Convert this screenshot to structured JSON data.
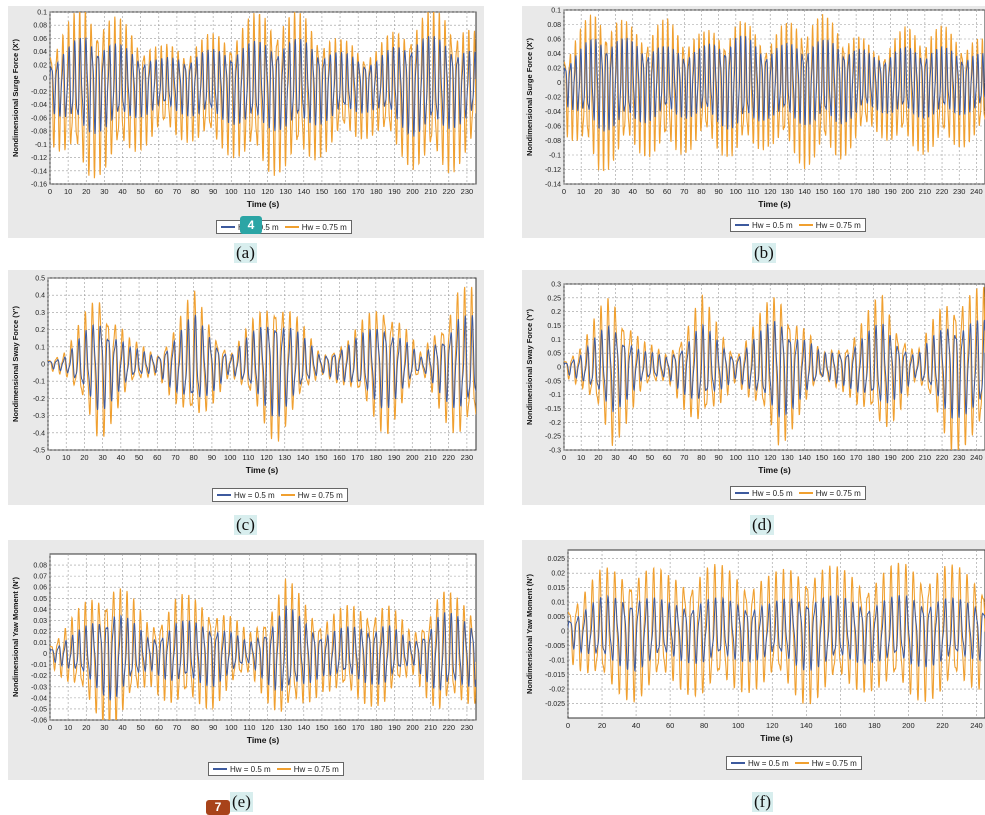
{
  "colors": {
    "series1": "#3d5a9e",
    "series2": "#f0a030",
    "panel_bg": "#e9e9e9",
    "grid": "#9a9a9a"
  },
  "badges": [
    {
      "text": "4",
      "color": "#2ba5a5"
    },
    {
      "text": "7",
      "color": "#a8431a"
    }
  ],
  "chart_data": [
    {
      "id": "a",
      "caption": "(a)",
      "type": "line",
      "ylabel": "Nondimensional Surge Force (X')",
      "xlabel": "Time (s)",
      "xlim": [
        0,
        235
      ],
      "xticks": [
        0,
        10,
        20,
        30,
        40,
        50,
        60,
        70,
        80,
        90,
        100,
        110,
        120,
        130,
        140,
        150,
        160,
        170,
        180,
        190,
        200,
        210,
        220,
        230
      ],
      "ylim": [
        -0.16,
        0.1
      ],
      "yticks": [
        0.1,
        0.08,
        0.06,
        0.04,
        0.02,
        0,
        -0.02,
        -0.04,
        -0.06,
        -0.08,
        -0.1,
        -0.12,
        -0.14,
        -0.16
      ],
      "series": [
        {
          "name": "Hw = 0.5 m",
          "color": "#3d5a9e",
          "amp_x": [
            0,
            20,
            40,
            60,
            80,
            100,
            120,
            140,
            160,
            180,
            200,
            220,
            235
          ],
          "amp_y": [
            0.04,
            0.08,
            0.06,
            0.04,
            0.05,
            0.06,
            0.07,
            0.07,
            0.05,
            0.04,
            0.08,
            0.07,
            0.05
          ],
          "period": 3.2,
          "offset": -0.01
        },
        {
          "name": "Hw = 0.75 m",
          "color": "#f0a030",
          "amp_x": [
            0,
            20,
            40,
            60,
            80,
            100,
            120,
            140,
            160,
            180,
            200,
            220,
            235
          ],
          "amp_y": [
            0.08,
            0.14,
            0.11,
            0.07,
            0.08,
            0.1,
            0.13,
            0.12,
            0.08,
            0.07,
            0.12,
            0.13,
            0.09
          ],
          "period": 3.2,
          "offset": -0.02
        }
      ],
      "legend": [
        "Hw = 0.5 m",
        "Hw = 0.75 m"
      ]
    },
    {
      "id": "b",
      "caption": "(b)",
      "type": "line",
      "ylabel": "Nondimensional Surge Force (X')",
      "xlabel": "Time (s)",
      "xlim": [
        0,
        245
      ],
      "xticks": [
        0,
        10,
        20,
        30,
        40,
        50,
        60,
        70,
        80,
        90,
        100,
        110,
        120,
        130,
        140,
        150,
        160,
        170,
        180,
        190,
        200,
        210,
        220,
        230,
        240
      ],
      "ylim": [
        -0.14,
        0.1
      ],
      "yticks": [
        0.1,
        0.08,
        0.06,
        0.04,
        0.02,
        0,
        -0.02,
        -0.04,
        -0.06,
        -0.08,
        -0.1,
        -0.12,
        -0.14
      ],
      "series": [
        {
          "name": "Hw = 0.5 m",
          "color": "#3d5a9e",
          "amp_x": [
            0,
            20,
            40,
            60,
            80,
            100,
            120,
            140,
            160,
            180,
            200,
            220,
            245
          ],
          "amp_y": [
            0.03,
            0.07,
            0.06,
            0.05,
            0.05,
            0.07,
            0.05,
            0.06,
            0.06,
            0.04,
            0.05,
            0.05,
            0.04
          ],
          "period": 3.0,
          "offset": 0
        },
        {
          "name": "Hw = 0.75 m",
          "color": "#f0a030",
          "amp_x": [
            0,
            20,
            40,
            60,
            80,
            100,
            120,
            140,
            160,
            180,
            200,
            220,
            245
          ],
          "amp_y": [
            0.06,
            0.12,
            0.09,
            0.1,
            0.08,
            0.1,
            0.08,
            0.11,
            0.1,
            0.06,
            0.09,
            0.09,
            0.07
          ],
          "period": 3.0,
          "offset": -0.01
        }
      ],
      "legend": [
        "Hw = 0.5 m",
        "Hw = 0.75 m"
      ]
    },
    {
      "id": "c",
      "caption": "(c)",
      "type": "line",
      "ylabel": "Nondimensional Sway Force (Y')",
      "xlabel": "Time (s)",
      "xlim": [
        0,
        235
      ],
      "xticks": [
        0,
        10,
        20,
        30,
        40,
        50,
        60,
        70,
        80,
        90,
        100,
        110,
        120,
        130,
        140,
        150,
        160,
        170,
        180,
        190,
        200,
        210,
        220,
        230
      ],
      "ylim": [
        -0.5,
        0.5
      ],
      "yticks": [
        0.5,
        0.4,
        0.3,
        0.2,
        0.1,
        0,
        -0.1,
        -0.2,
        -0.3,
        -0.4,
        -0.5
      ],
      "series": [
        {
          "name": "Hw = 0.5 m",
          "color": "#3d5a9e",
          "amp_x": [
            0,
            10,
            28,
            45,
            60,
            80,
            100,
            125,
            150,
            165,
            185,
            205,
            225,
            235
          ],
          "amp_y": [
            0.02,
            0.05,
            0.3,
            0.1,
            0.05,
            0.3,
            0.05,
            0.33,
            0.05,
            0.12,
            0.28,
            0.04,
            0.3,
            0.28
          ],
          "period": 4.0,
          "offset": 0
        },
        {
          "name": "Hw = 0.75 m",
          "color": "#f0a030",
          "amp_x": [
            0,
            10,
            28,
            45,
            60,
            80,
            100,
            125,
            150,
            165,
            185,
            205,
            225,
            235
          ],
          "amp_y": [
            0.03,
            0.08,
            0.48,
            0.15,
            0.06,
            0.44,
            0.06,
            0.48,
            0.06,
            0.15,
            0.44,
            0.06,
            0.48,
            0.44
          ],
          "period": 4.0,
          "offset": 0
        }
      ],
      "legend": [
        "Hw = 0.5 m",
        "Hw = 0.75 m"
      ]
    },
    {
      "id": "d",
      "caption": "(d)",
      "type": "line",
      "ylabel": "Nondimensional Sway Force (Y')",
      "xlabel": "Time (s)",
      "xlim": [
        0,
        245
      ],
      "xticks": [
        0,
        10,
        20,
        30,
        40,
        50,
        60,
        70,
        80,
        90,
        100,
        110,
        120,
        130,
        140,
        150,
        160,
        170,
        180,
        190,
        200,
        210,
        220,
        230,
        240
      ],
      "ylim": [
        -0.3,
        0.3
      ],
      "yticks": [
        0.3,
        0.25,
        0.2,
        0.15,
        0.1,
        0.05,
        0,
        -0.05,
        -0.1,
        -0.15,
        -0.2,
        -0.25,
        -0.3
      ],
      "series": [
        {
          "name": "Hw = 0.5 m",
          "color": "#3d5a9e",
          "amp_x": [
            0,
            10,
            28,
            45,
            60,
            80,
            100,
            125,
            150,
            165,
            185,
            205,
            225,
            245
          ],
          "amp_y": [
            0.02,
            0.05,
            0.18,
            0.06,
            0.04,
            0.16,
            0.04,
            0.2,
            0.05,
            0.07,
            0.17,
            0.04,
            0.19,
            0.17
          ],
          "period": 4.2,
          "offset": 0
        },
        {
          "name": "Hw = 0.75 m",
          "color": "#f0a030",
          "amp_x": [
            0,
            10,
            28,
            45,
            60,
            80,
            100,
            125,
            150,
            165,
            185,
            205,
            225,
            245
          ],
          "amp_y": [
            0.03,
            0.08,
            0.31,
            0.1,
            0.05,
            0.27,
            0.05,
            0.31,
            0.05,
            0.1,
            0.28,
            0.05,
            0.31,
            0.29
          ],
          "period": 4.2,
          "offset": 0
        }
      ],
      "legend": [
        "Hw = 0.5 m",
        "Hw = 0.75 m"
      ]
    },
    {
      "id": "e",
      "caption": "(e)",
      "type": "line",
      "ylabel": "Nondimensional Yaw Moment (N')",
      "xlabel": "Time (s)",
      "xlim": [
        0,
        235
      ],
      "xticks": [
        0,
        10,
        20,
        30,
        40,
        50,
        60,
        70,
        80,
        90,
        100,
        110,
        120,
        130,
        140,
        150,
        160,
        170,
        180,
        190,
        200,
        210,
        220,
        230
      ],
      "ylim": [
        -0.06,
        0.09
      ],
      "yticks": [
        0.08,
        0.07,
        0.06,
        0.05,
        0.04,
        0.03,
        0.02,
        0.01,
        0,
        -0.01,
        -0.02,
        -0.03,
        -0.04,
        -0.05,
        -0.06
      ],
      "series": [
        {
          "name": "Hw = 0.5 m",
          "color": "#3d5a9e",
          "amp_x": [
            0,
            15,
            35,
            55,
            70,
            90,
            110,
            130,
            150,
            165,
            185,
            200,
            215,
            235
          ],
          "amp_y": [
            0.005,
            0.02,
            0.045,
            0.015,
            0.03,
            0.03,
            0.01,
            0.045,
            0.02,
            0.025,
            0.03,
            0.01,
            0.04,
            0.03
          ],
          "period": 3.8,
          "offset": 0
        },
        {
          "name": "Hw = 0.75 m",
          "color": "#f0a030",
          "amp_x": [
            0,
            15,
            35,
            55,
            70,
            90,
            110,
            130,
            150,
            165,
            185,
            200,
            215,
            235
          ],
          "amp_y": [
            0.01,
            0.04,
            0.075,
            0.03,
            0.055,
            0.05,
            0.02,
            0.07,
            0.035,
            0.045,
            0.05,
            0.02,
            0.06,
            0.045
          ],
          "period": 3.8,
          "offset": 0
        }
      ],
      "legend": [
        "Hw = 0.5 m",
        "Hw = 0.75 m"
      ]
    },
    {
      "id": "f",
      "caption": "(f)",
      "type": "line",
      "ylabel": "Nondimensional Yaw Moment (N')",
      "xlabel": "Time (s)",
      "xlim": [
        0,
        245
      ],
      "xticks": [
        0,
        20,
        40,
        60,
        80,
        100,
        120,
        140,
        160,
        180,
        200,
        220,
        240
      ],
      "ylim": [
        -0.03,
        0.028
      ],
      "yticks": [
        0.025,
        0.02,
        0.015,
        0.01,
        0.005,
        0,
        -0.005,
        -0.01,
        -0.015,
        -0.02,
        -0.025
      ],
      "series": [
        {
          "name": "Hw = 0.5 m",
          "color": "#3d5a9e",
          "amp_x": [
            0,
            20,
            40,
            60,
            80,
            100,
            120,
            140,
            160,
            180,
            200,
            220,
            245
          ],
          "amp_y": [
            0.005,
            0.012,
            0.014,
            0.01,
            0.012,
            0.011,
            0.01,
            0.014,
            0.012,
            0.011,
            0.013,
            0.012,
            0.01
          ],
          "period": 4.5,
          "offset": 0
        },
        {
          "name": "Hw = 0.75 m",
          "color": "#f0a030",
          "amp_x": [
            0,
            20,
            40,
            60,
            80,
            100,
            120,
            140,
            160,
            180,
            200,
            220,
            245
          ],
          "amp_y": [
            0.01,
            0.022,
            0.025,
            0.02,
            0.024,
            0.022,
            0.02,
            0.026,
            0.022,
            0.021,
            0.025,
            0.024,
            0.02
          ],
          "period": 4.5,
          "offset": 0
        }
      ],
      "legend": [
        "Hw = 0.5 m",
        "Hw = 0.75 m"
      ]
    }
  ]
}
